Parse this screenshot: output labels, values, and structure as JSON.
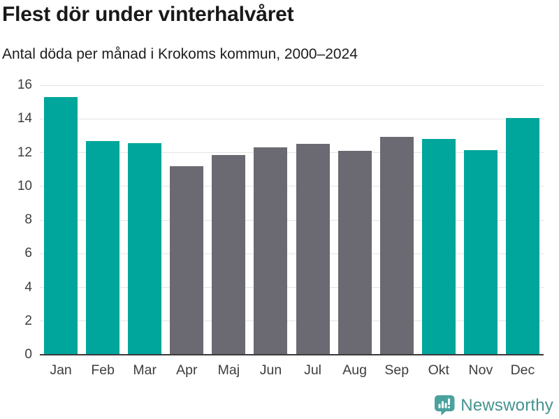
{
  "title": "Flest dör under vinterhalvåret",
  "subtitle": "Antal döda per månad i Krokoms kommun, 2000–2024",
  "footer": {
    "brand": "Newsworthy",
    "logo_icon": "bar-chart-speech-bubble-icon"
  },
  "colors": {
    "highlight": "#00a59c",
    "muted": "#6b6a72",
    "gridline": "#e4e4e4",
    "axis": "#3a3a3a",
    "tick_text": "#3d3d3d",
    "title_text": "#191919",
    "logo_text": "#44938f",
    "logo_icon": "#4aa29e"
  },
  "chart_data": {
    "type": "bar",
    "title": "Flest dör under vinterhalvåret",
    "subtitle": "Antal döda per månad i Krokoms kommun, 2000–2024",
    "categories": [
      "Jan",
      "Feb",
      "Mar",
      "Apr",
      "Maj",
      "Jun",
      "Jul",
      "Aug",
      "Sep",
      "Okt",
      "Nov",
      "Dec"
    ],
    "values": [
      15.3,
      12.7,
      12.55,
      11.2,
      11.85,
      12.3,
      12.5,
      12.1,
      12.95,
      12.8,
      12.15,
      14.05
    ],
    "bar_colors": [
      "highlight",
      "highlight",
      "highlight",
      "muted",
      "muted",
      "muted",
      "muted",
      "muted",
      "muted",
      "highlight",
      "highlight",
      "highlight"
    ],
    "xlabel": "",
    "ylabel": "",
    "ylim": [
      0,
      16
    ],
    "yticks": [
      0,
      2,
      4,
      6,
      8,
      10,
      12,
      14,
      16
    ],
    "grid": true,
    "legend": false
  }
}
